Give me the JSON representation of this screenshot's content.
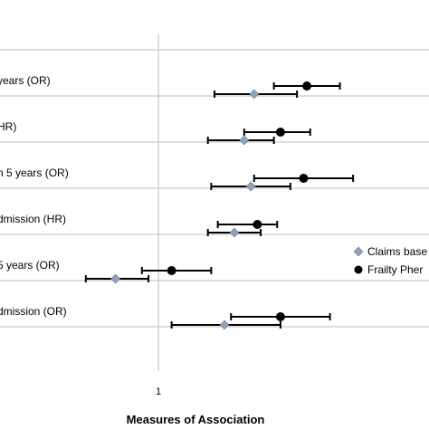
{
  "chart_data": {
    "type": "forest",
    "xlabel": "Measures of Association",
    "x_ticks": [
      {
        "value": 1,
        "label": "1"
      }
    ],
    "reference_line": 1,
    "xlim": [
      0.52,
      1.82
    ],
    "grid": "horizontal separators between rows",
    "legend": {
      "placement": "right",
      "entries": [
        {
          "label": "Claims base",
          "marker": "diamond",
          "color": "#8fa2b8"
        },
        {
          "label": "Frailty Pher",
          "marker": "circle",
          "color": "#000000"
        }
      ]
    },
    "rows": [
      {
        "label": "years (OR)",
        "frailty": {
          "est": 1.45,
          "lo": 1.35,
          "hi": 1.55
        },
        "claims": {
          "est": 1.29,
          "lo": 1.17,
          "hi": 1.42
        }
      },
      {
        "label": "HR)",
        "frailty": {
          "est": 1.37,
          "lo": 1.26,
          "hi": 1.46
        },
        "claims": {
          "est": 1.26,
          "lo": 1.15,
          "hi": 1.35
        }
      },
      {
        "label": "n 5 years (OR)",
        "frailty": {
          "est": 1.44,
          "lo": 1.29,
          "hi": 1.59
        },
        "claims": {
          "est": 1.28,
          "lo": 1.16,
          "hi": 1.4
        }
      },
      {
        "label": "dmission (HR)",
        "frailty": {
          "est": 1.3,
          "lo": 1.18,
          "hi": 1.36
        },
        "claims": {
          "est": 1.23,
          "lo": 1.15,
          "hi": 1.31
        }
      },
      {
        "label": "5 years (OR)",
        "frailty": {
          "est": 1.04,
          "lo": 0.95,
          "hi": 1.16
        },
        "claims": {
          "est": 0.87,
          "lo": 0.78,
          "hi": 0.97
        }
      },
      {
        "label": "dmission (OR)",
        "frailty": {
          "est": 1.37,
          "lo": 1.22,
          "hi": 1.52
        },
        "claims": {
          "est": 1.2,
          "lo": 1.04,
          "hi": 1.37
        }
      }
    ]
  }
}
